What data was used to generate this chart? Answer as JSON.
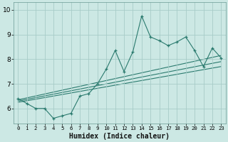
{
  "xlabel": "Humidex (Indice chaleur)",
  "bg_color": "#cce8e4",
  "grid_color": "#a8ccc8",
  "line_color": "#2a7a6e",
  "xlim": [
    -0.5,
    23.5
  ],
  "ylim": [
    5.4,
    10.3
  ],
  "yticks": [
    6,
    7,
    8,
    9,
    10
  ],
  "xticks": [
    0,
    1,
    2,
    3,
    4,
    5,
    6,
    7,
    8,
    9,
    10,
    11,
    12,
    13,
    14,
    15,
    16,
    17,
    18,
    19,
    20,
    21,
    22,
    23
  ],
  "series1_x": [
    0,
    1,
    2,
    3,
    4,
    5,
    6,
    7,
    8,
    9,
    10,
    11,
    12,
    13,
    14,
    15,
    16,
    17,
    18,
    19,
    20,
    21,
    22,
    23
  ],
  "series1_y": [
    6.4,
    6.2,
    6.0,
    6.0,
    5.6,
    5.7,
    5.8,
    6.5,
    6.6,
    7.0,
    7.6,
    8.35,
    7.5,
    8.3,
    9.75,
    8.9,
    8.75,
    8.55,
    8.7,
    8.9,
    8.35,
    7.7,
    8.45,
    8.05
  ],
  "line1_x": [
    0,
    23
  ],
  "line1_y": [
    6.35,
    8.15
  ],
  "line2_x": [
    0,
    23
  ],
  "line2_y": [
    6.3,
    7.9
  ],
  "line3_x": [
    0,
    23
  ],
  "line3_y": [
    6.25,
    7.7
  ]
}
